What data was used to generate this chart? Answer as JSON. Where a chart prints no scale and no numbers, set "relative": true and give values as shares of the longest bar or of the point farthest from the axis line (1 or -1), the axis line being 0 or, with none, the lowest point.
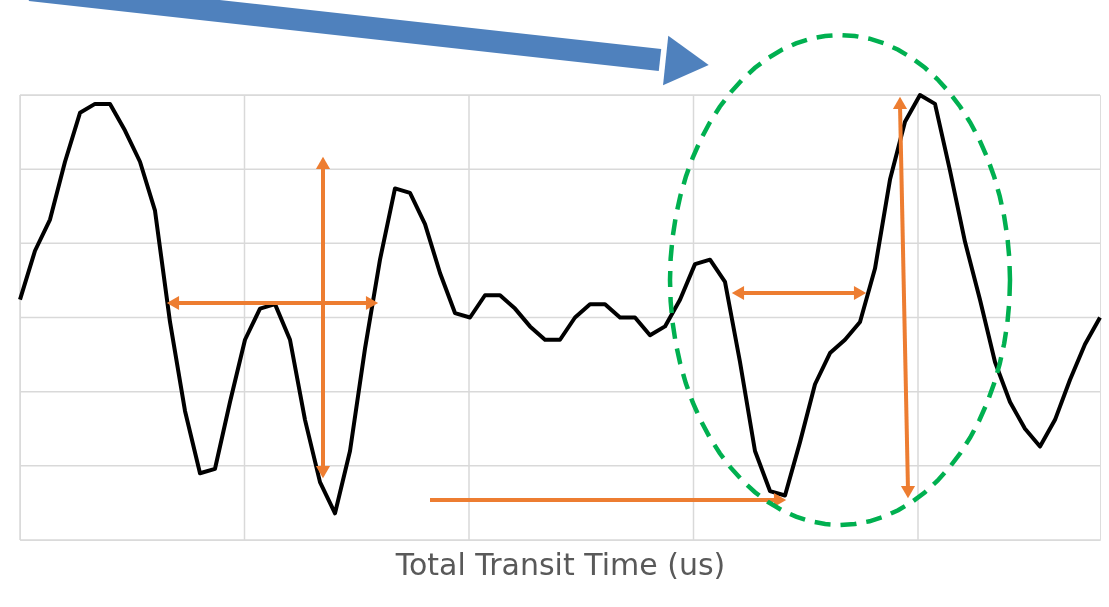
{
  "chart_data": {
    "type": "line",
    "relative": true,
    "xlabel": "Total Transit Time (us)",
    "grid": true,
    "marker": "none",
    "line_style": "solid",
    "categories": [
      null,
      null,
      null,
      null,
      null,
      null,
      null,
      null,
      null,
      null,
      null,
      null,
      null,
      null,
      null,
      null,
      null,
      null,
      null,
      null,
      null,
      null,
      null,
      null,
      null,
      null,
      null,
      null,
      null,
      null,
      null,
      null,
      null,
      null,
      null,
      null,
      null,
      null,
      null,
      null,
      null,
      null,
      null,
      null,
      null,
      null,
      null,
      null,
      null,
      null,
      null,
      null,
      null,
      null,
      null,
      null,
      null,
      null,
      null,
      null,
      null,
      null,
      null,
      null,
      null,
      null,
      null,
      null,
      null,
      null,
      null,
      null,
      null
    ],
    "series": [
      {
        "color": "#000000",
        "values": [
          0.54,
          0.65,
          0.72,
          0.85,
          0.96,
          0.98,
          0.98,
          0.92,
          0.85,
          0.74,
          0.49,
          0.29,
          0.15,
          0.16,
          0.31,
          0.45,
          0.52,
          0.53,
          0.45,
          0.27,
          0.13,
          0.06,
          0.2,
          0.43,
          0.63,
          0.79,
          0.78,
          0.71,
          0.6,
          0.51,
          0.5,
          0.55,
          0.55,
          0.52,
          0.48,
          0.45,
          0.45,
          0.5,
          0.53,
          0.53,
          0.5,
          0.5,
          0.46,
          0.48,
          0.54,
          0.62,
          0.63,
          0.58,
          0.4,
          0.2,
          0.11,
          0.1,
          0.22,
          0.35,
          0.42,
          0.45,
          0.49,
          0.61,
          0.81,
          0.94,
          1,
          0.98,
          0.83,
          0.67,
          0.54,
          0.4,
          0.31,
          0.25,
          0.21,
          0.27,
          0.36,
          0.44,
          0.5
        ]
      }
    ]
  }
}
